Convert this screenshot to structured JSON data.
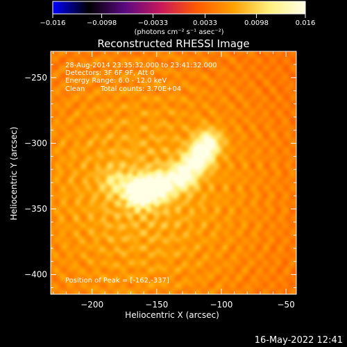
{
  "chart_data": {
    "type": "heatmap",
    "title": "Reconstructed RHESSI Image",
    "xlabel": "Heliocentric X (arcsec)",
    "ylabel": "Heliocentric Y (arcsec)",
    "xlim": [
      -232,
      -42
    ],
    "ylim": [
      -415,
      -230
    ],
    "x_ticks": [
      -200,
      -150,
      -100,
      -50
    ],
    "y_ticks": [
      -250,
      -300,
      -350,
      -400
    ],
    "x_tick_labels": [
      "−200",
      "−150",
      "−100",
      "−50"
    ],
    "y_tick_labels": [
      "−250",
      "−300",
      "−350",
      "−400"
    ],
    "colorbar": {
      "min": -0.016,
      "max": 0.016,
      "ticks": [
        -0.016,
        -0.0098,
        -0.0033,
        0.0033,
        0.0098,
        0.016
      ],
      "tick_labels": [
        "−0.016",
        "−0.0098",
        "−0.0033",
        "0.0033",
        "0.0098",
        "0.016"
      ],
      "unit_label": "(photons cm⁻² s⁻¹ asec⁻²)",
      "colormap": [
        "#0000ff",
        "#000000",
        "#5a0a82",
        "#c8185a",
        "#ff5a00",
        "#ffa000",
        "#fff07d",
        "#ffffe6"
      ]
    },
    "sources": [
      {
        "x": -163,
        "y": -337,
        "flux": 0.016
      },
      {
        "x": -148,
        "y": -333,
        "flux": 0.012
      },
      {
        "x": -130,
        "y": -325,
        "flux": 0.0105
      },
      {
        "x": -118,
        "y": -312,
        "flux": 0.0105
      },
      {
        "x": -110,
        "y": -300,
        "flux": 0.0095
      },
      {
        "x": -182,
        "y": -330,
        "flux": 0.004
      }
    ],
    "annotations": {
      "time_range": "28-Aug-2014 23:35:32.000 to 23:41:32.000",
      "detectors": "Detectors: 3F 6F 9F, Att 0",
      "energy": "Energy Range: 6.0 - 12.0 keV",
      "method": "Clean",
      "counts": "Total counts: 3.70E+04",
      "peak": "Position of Peak = [-162,-337]"
    },
    "peak": {
      "x": -162,
      "y": -337
    }
  },
  "footer": {
    "date": "16-May-2022 12:41"
  }
}
